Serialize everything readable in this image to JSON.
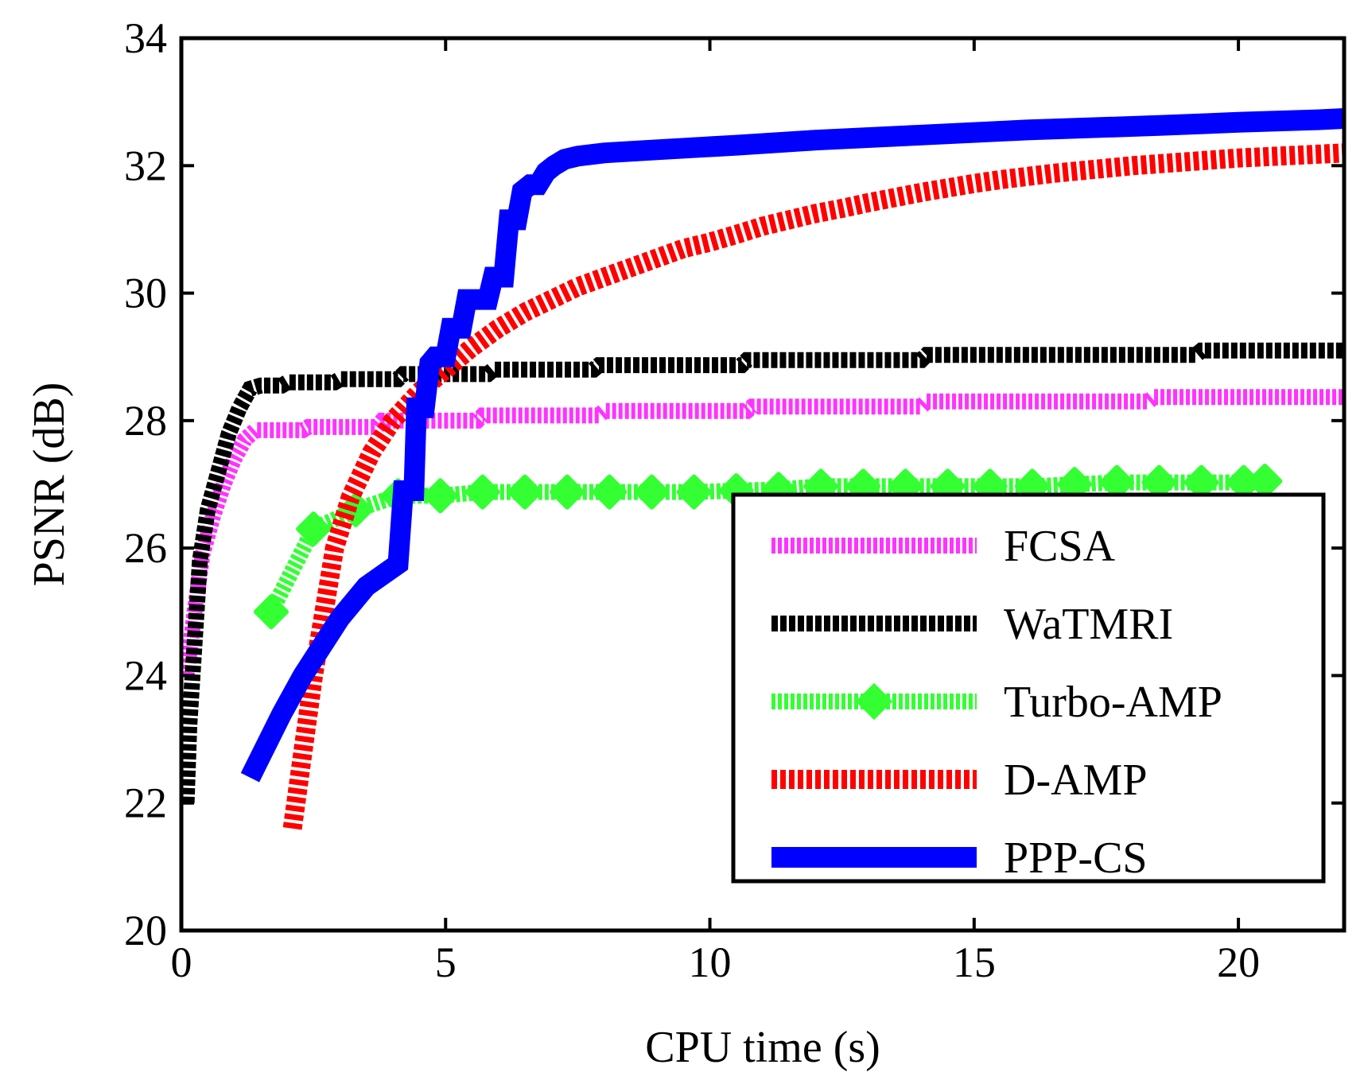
{
  "chart_data": {
    "type": "line",
    "title": "",
    "xlabel": "CPU time (s)",
    "ylabel": "PSNR (dB)",
    "xlim": [
      0,
      22
    ],
    "ylim": [
      20,
      34
    ],
    "xticks": [
      0,
      5,
      10,
      15,
      20
    ],
    "yticks": [
      20,
      22,
      24,
      26,
      28,
      30,
      32,
      34
    ],
    "xtick_labels": [
      "0",
      "5",
      "10",
      "15",
      "20"
    ],
    "ytick_labels": [
      "20",
      "22",
      "24",
      "26",
      "28",
      "30",
      "32",
      "34"
    ],
    "legend_position": "lower-right",
    "series": [
      {
        "name": "FCSA",
        "color": "#ff33ff",
        "style": "dashed",
        "marker": "none",
        "x": [
          0.1,
          0.25,
          0.4,
          0.6,
          0.8,
          1.0,
          1.2,
          1.4,
          2.3,
          2.4,
          3.7,
          3.8,
          5.6,
          5.7,
          7.9,
          8.0,
          10.7,
          10.8,
          14.0,
          14.1,
          18.3,
          18.4,
          22.0
        ],
        "y": [
          24.0,
          25.0,
          25.9,
          26.5,
          27.0,
          27.4,
          27.7,
          27.85,
          27.85,
          27.9,
          27.9,
          28.0,
          28.0,
          28.08,
          28.08,
          28.15,
          28.15,
          28.22,
          28.22,
          28.3,
          28.3,
          28.37,
          28.37
        ]
      },
      {
        "name": "WaTMRI",
        "color": "#000000",
        "style": "dashed",
        "marker": "none",
        "x": [
          0.1,
          0.15,
          0.25,
          0.35,
          0.5,
          0.7,
          0.9,
          1.1,
          1.3,
          1.5,
          1.9,
          2.0,
          2.9,
          3.0,
          4.1,
          4.2,
          5.8,
          5.9,
          7.8,
          7.9,
          10.6,
          10.7,
          14.0,
          14.1,
          19.2,
          19.3,
          22.0
        ],
        "y": [
          22.0,
          23.2,
          24.5,
          25.8,
          26.6,
          27.2,
          27.8,
          28.2,
          28.5,
          28.55,
          28.55,
          28.6,
          28.6,
          28.65,
          28.65,
          28.73,
          28.73,
          28.8,
          28.8,
          28.87,
          28.87,
          28.95,
          28.95,
          29.03,
          29.03,
          29.1,
          29.1
        ]
      },
      {
        "name": "Turbo-AMP",
        "color": "#33ff33",
        "style": "dashed",
        "marker": "diamond",
        "x": [
          1.7,
          2.5,
          3.3,
          4.1,
          4.9,
          5.7,
          6.5,
          7.3,
          8.1,
          8.9,
          9.7,
          10.5,
          11.3,
          12.1,
          12.9,
          13.7,
          14.5,
          15.3,
          16.1,
          16.9,
          17.7,
          18.5,
          19.3,
          20.1,
          20.5
        ],
        "y": [
          25.0,
          26.3,
          26.6,
          26.82,
          26.82,
          26.88,
          26.88,
          26.88,
          26.88,
          26.88,
          26.88,
          26.9,
          26.92,
          26.97,
          26.97,
          26.97,
          26.97,
          26.97,
          26.97,
          27.0,
          27.03,
          27.03,
          27.03,
          27.03,
          27.05
        ]
      },
      {
        "name": "D-AMP",
        "color": "#ff0000",
        "style": "dashed",
        "marker": "none",
        "x": [
          2.1,
          2.3,
          2.5,
          2.7,
          2.9,
          3.2,
          3.6,
          4.0,
          4.5,
          5.0,
          5.5,
          6.0,
          6.5,
          7.0,
          7.5,
          8.0,
          8.5,
          9.0,
          9.5,
          10.0,
          10.5,
          11.0,
          11.5,
          12.0,
          12.5,
          13.0,
          13.5,
          14.0,
          14.5,
          15.0,
          15.5,
          16.0,
          16.5,
          17.0,
          17.5,
          18.0,
          18.5,
          19.0,
          19.5,
          20.0,
          20.5,
          21.0,
          21.5,
          22.0
        ],
        "y": [
          21.6,
          22.8,
          24.0,
          25.0,
          26.0,
          26.8,
          27.5,
          28.0,
          28.45,
          28.8,
          29.15,
          29.45,
          29.7,
          29.9,
          30.1,
          30.25,
          30.4,
          30.55,
          30.7,
          30.8,
          30.92,
          31.05,
          31.15,
          31.25,
          31.33,
          31.42,
          31.5,
          31.58,
          31.65,
          31.72,
          31.78,
          31.83,
          31.88,
          31.92,
          31.96,
          32.0,
          32.03,
          32.06,
          32.09,
          32.12,
          32.14,
          32.16,
          32.18,
          32.2
        ]
      },
      {
        "name": "PPP-CS",
        "color": "#0000ff",
        "style": "solid",
        "marker": "none",
        "x": [
          1.3,
          1.9,
          2.3,
          3.0,
          3.5,
          4.1,
          4.2,
          4.4,
          4.45,
          4.6,
          4.7,
          4.8,
          5.0,
          5.1,
          5.3,
          5.4,
          5.55,
          5.8,
          5.9,
          6.1,
          6.2,
          6.35,
          6.45,
          6.6,
          6.75,
          6.9,
          7.05,
          7.25,
          7.5,
          8.0,
          9.0,
          10.5,
          12.0,
          14.0,
          16.0,
          18.5,
          20.0,
          21.5,
          22.0
        ],
        "y": [
          22.4,
          23.4,
          24.0,
          24.9,
          25.4,
          25.75,
          26.9,
          26.9,
          28.2,
          28.2,
          28.9,
          29.0,
          29.0,
          29.45,
          29.45,
          29.9,
          29.9,
          29.9,
          30.25,
          30.25,
          31.15,
          31.15,
          31.6,
          31.7,
          31.7,
          31.9,
          32.0,
          32.1,
          32.15,
          32.2,
          32.25,
          32.32,
          32.4,
          32.48,
          32.56,
          32.63,
          32.68,
          32.72,
          32.74
        ]
      }
    ]
  }
}
